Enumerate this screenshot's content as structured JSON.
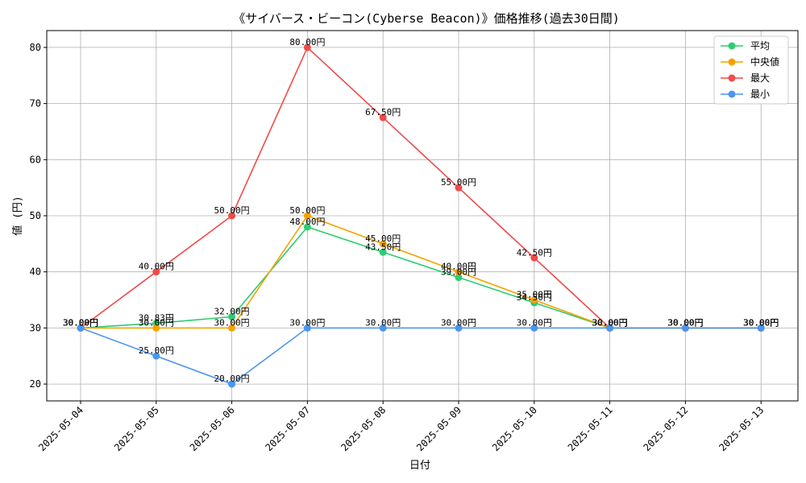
{
  "chart_data": {
    "type": "line",
    "title": "《サイバース・ビーコン(Cyberse Beacon)》価格推移(過去30日間)",
    "xlabel": "日付",
    "ylabel": "値 (円)",
    "categories": [
      "2025-05-04",
      "2025-05-05",
      "2025-05-06",
      "2025-05-07",
      "2025-05-08",
      "2025-05-09",
      "2025-05-10",
      "2025-05-11",
      "2025-05-12",
      "2025-05-13"
    ],
    "ylim": [
      17,
      83
    ],
    "yticks": [
      20,
      30,
      40,
      50,
      60,
      70,
      80
    ],
    "grid": true,
    "legend_position": "top-right",
    "value_suffix": "円",
    "series": [
      {
        "name": "平均",
        "color": "#2ecc71",
        "values": [
          30,
          30.83,
          32,
          48,
          43.5,
          39,
          34.5,
          30,
          30,
          30
        ]
      },
      {
        "name": "中央値",
        "color": "#f5a200",
        "values": [
          30,
          30,
          30,
          50,
          45,
          40,
          35,
          30,
          30,
          30
        ]
      },
      {
        "name": "最大",
        "color": "#f04a4a",
        "values": [
          30,
          40,
          50,
          80,
          67.5,
          55,
          42.5,
          30,
          30,
          30
        ]
      },
      {
        "name": "最小",
        "color": "#4a95f0",
        "values": [
          30,
          25,
          20,
          30,
          30,
          30,
          30,
          30,
          30,
          30
        ]
      }
    ]
  }
}
